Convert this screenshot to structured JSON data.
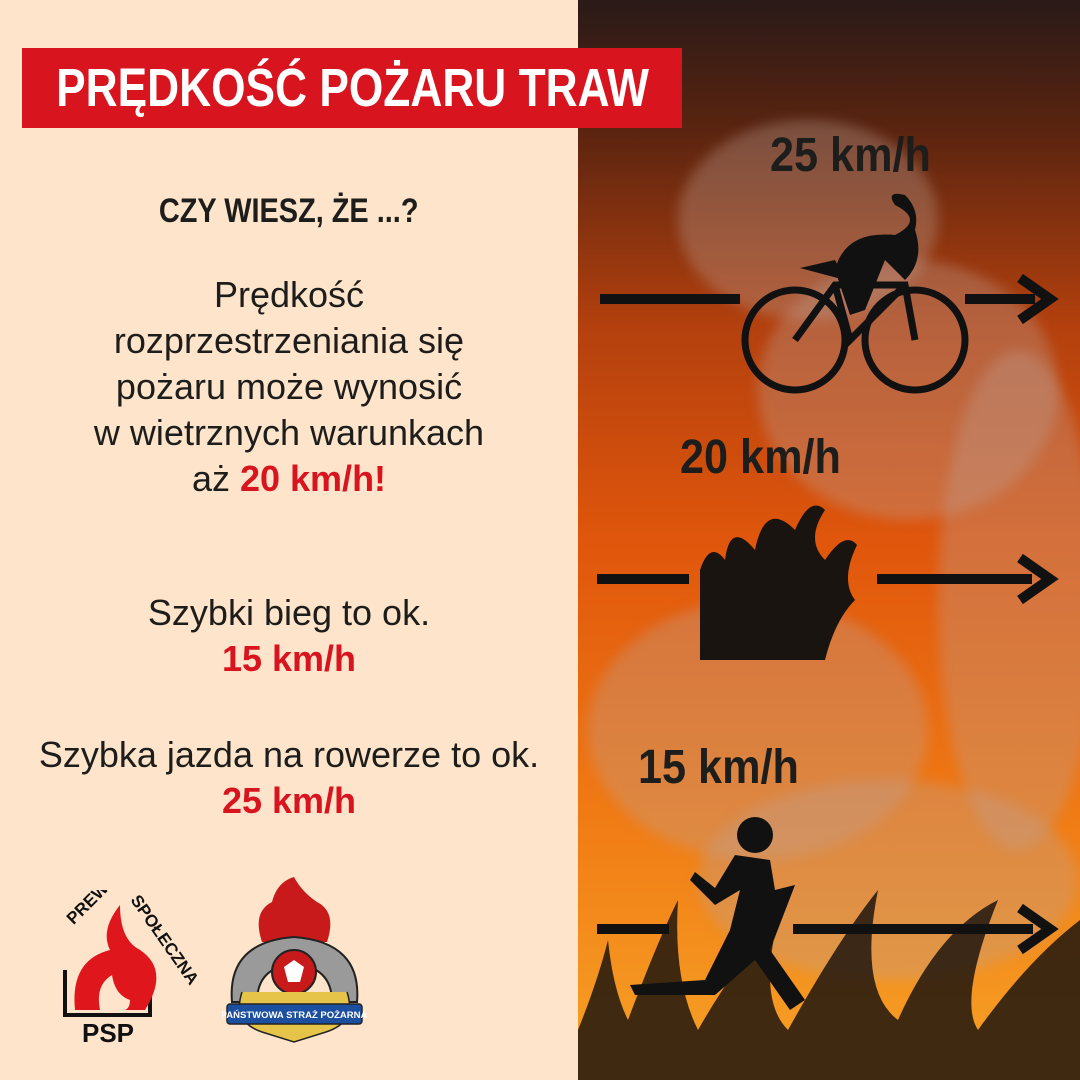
{
  "title": "PRĘDKOŚĆ POŻARU TRAW",
  "question": "CZY WIESZ, ŻE ...?",
  "paragraph1": {
    "lines": [
      "Prędkość",
      "rozprzestrzeniania się",
      "pożaru może wynosić",
      "w wietrznych warunkach"
    ],
    "prefix": "aż ",
    "highlight": "20 km/h!"
  },
  "paragraph2": {
    "text": "Szybki bieg to ok.",
    "highlight": "15 km/h"
  },
  "paragraph3": {
    "text": "Szybka jazda na rowerze to ok.",
    "highlight": "25 km/h"
  },
  "speeds": [
    {
      "label": "25 km/h",
      "icon": "cyclist-icon"
    },
    {
      "label": "20 km/h",
      "icon": "fire-icon"
    },
    {
      "label": "15 km/h",
      "icon": "runner-icon"
    }
  ],
  "logos": {
    "prewencja": {
      "top_left": "PREWENCJA",
      "top_right": "SPOŁECZNA",
      "bottom": "PSP"
    },
    "psp": {
      "ribbon": "PAŃSTWOWA STRAŻ POŻARNA"
    }
  },
  "colors": {
    "accent": "#d8141f",
    "background": "#fde4ca",
    "text": "#1d1d1b"
  }
}
